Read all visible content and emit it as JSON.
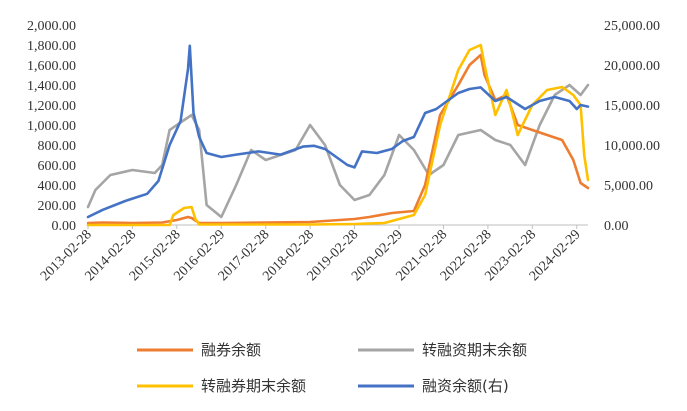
{
  "chart_data": {
    "type": "line",
    "left_axis": {
      "min": 0,
      "max": 2000,
      "step": 200,
      "tick_labels": [
        "0.00",
        "200.00",
        "400.00",
        "600.00",
        "800.00",
        "1,000.00",
        "1,200.00",
        "1,400.00",
        "1,600.00",
        "1,800.00",
        "2,000.00"
      ]
    },
    "right_axis": {
      "min": 0,
      "max": 25000,
      "step": 5000,
      "tick_labels": [
        "0.00",
        "5,000.00",
        "10,000.00",
        "15,000.00",
        "20,000.00",
        "25,000.00"
      ]
    },
    "x_range": [
      "2013-02-28",
      "2024-05-31"
    ],
    "x_tick_labels": [
      "2013-02-28",
      "2014-02-28",
      "2015-02-28",
      "2016-02-29",
      "2017-02-28",
      "2018-02-28",
      "2019-02-28",
      "2020-02-29",
      "2021-02-28",
      "2022-02-28",
      "2023-02-28",
      "2024-02-29"
    ],
    "legend_placement": "bottom",
    "grid": false,
    "series": [
      {
        "name": "融券余额",
        "axis": "left",
        "color": "#ED7D31",
        "points": [
          [
            "2013-02-28",
            20
          ],
          [
            "2013-06-30",
            25
          ],
          [
            "2014-02-28",
            20
          ],
          [
            "2014-10-31",
            25
          ],
          [
            "2015-02-28",
            50
          ],
          [
            "2015-05-31",
            80
          ],
          [
            "2015-06-30",
            70
          ],
          [
            "2015-08-31",
            20
          ],
          [
            "2016-02-29",
            20
          ],
          [
            "2017-02-28",
            25
          ],
          [
            "2018-02-28",
            30
          ],
          [
            "2019-02-28",
            60
          ],
          [
            "2019-06-30",
            80
          ],
          [
            "2019-12-31",
            120
          ],
          [
            "2020-06-30",
            140
          ],
          [
            "2020-09-30",
            400
          ],
          [
            "2021-01-31",
            1100
          ],
          [
            "2021-06-30",
            1400
          ],
          [
            "2021-09-30",
            1600
          ],
          [
            "2021-12-31",
            1700
          ],
          [
            "2022-01-31",
            1500
          ],
          [
            "2022-04-30",
            1250
          ],
          [
            "2022-07-31",
            1300
          ],
          [
            "2022-10-31",
            1000
          ],
          [
            "2023-02-28",
            950
          ],
          [
            "2023-06-30",
            900
          ],
          [
            "2023-10-31",
            850
          ],
          [
            "2024-01-31",
            650
          ],
          [
            "2024-03-31",
            420
          ],
          [
            "2024-05-31",
            370
          ]
        ]
      },
      {
        "name": "转融资期末余额",
        "axis": "left",
        "color": "#A5A5A5",
        "points": [
          [
            "2013-02-28",
            180
          ],
          [
            "2013-04-30",
            350
          ],
          [
            "2013-08-31",
            500
          ],
          [
            "2014-02-28",
            550
          ],
          [
            "2014-08-31",
            520
          ],
          [
            "2014-10-31",
            600
          ],
          [
            "2014-12-31",
            950
          ],
          [
            "2015-04-30",
            1050
          ],
          [
            "2015-06-30",
            1100
          ],
          [
            "2015-08-31",
            950
          ],
          [
            "2015-10-31",
            200
          ],
          [
            "2016-02-29",
            80
          ],
          [
            "2016-06-30",
            400
          ],
          [
            "2016-10-31",
            750
          ],
          [
            "2017-02-28",
            650
          ],
          [
            "2017-06-30",
            700
          ],
          [
            "2017-10-31",
            750
          ],
          [
            "2018-02-28",
            1000
          ],
          [
            "2018-06-30",
            800
          ],
          [
            "2018-10-31",
            400
          ],
          [
            "2019-02-28",
            250
          ],
          [
            "2019-06-30",
            300
          ],
          [
            "2019-10-31",
            500
          ],
          [
            "2020-02-29",
            900
          ],
          [
            "2020-06-30",
            750
          ],
          [
            "2020-10-31",
            500
          ],
          [
            "2021-02-28",
            600
          ],
          [
            "2021-06-30",
            900
          ],
          [
            "2021-12-31",
            950
          ],
          [
            "2022-04-30",
            850
          ],
          [
            "2022-08-31",
            800
          ],
          [
            "2022-12-31",
            600
          ],
          [
            "2023-04-30",
            1000
          ],
          [
            "2023-08-31",
            1300
          ],
          [
            "2023-12-31",
            1400
          ],
          [
            "2024-03-31",
            1300
          ],
          [
            "2024-05-31",
            1400
          ]
        ]
      },
      {
        "name": "转融券期末余额",
        "axis": "left",
        "color": "#FFC000",
        "points": [
          [
            "2013-02-28",
            0
          ],
          [
            "2014-12-31",
            0
          ],
          [
            "2015-01-31",
            100
          ],
          [
            "2015-04-30",
            170
          ],
          [
            "2015-06-30",
            180
          ],
          [
            "2015-07-31",
            60
          ],
          [
            "2015-08-31",
            5
          ],
          [
            "2016-02-29",
            5
          ],
          [
            "2018-02-28",
            5
          ],
          [
            "2019-02-28",
            10
          ],
          [
            "2019-10-31",
            20
          ],
          [
            "2020-02-29",
            60
          ],
          [
            "2020-06-30",
            100
          ],
          [
            "2020-09-30",
            300
          ],
          [
            "2021-01-31",
            1000
          ],
          [
            "2021-06-30",
            1550
          ],
          [
            "2021-09-30",
            1750
          ],
          [
            "2021-12-31",
            1800
          ],
          [
            "2022-01-31",
            1600
          ],
          [
            "2022-04-30",
            1100
          ],
          [
            "2022-07-31",
            1350
          ],
          [
            "2022-10-31",
            900
          ],
          [
            "2023-02-28",
            1200
          ],
          [
            "2023-06-30",
            1350
          ],
          [
            "2023-10-31",
            1380
          ],
          [
            "2024-01-31",
            1300
          ],
          [
            "2024-03-31",
            1200
          ],
          [
            "2024-04-30",
            700
          ],
          [
            "2024-05-31",
            450
          ]
        ]
      },
      {
        "name": "融资余额(右)",
        "axis": "right",
        "color": "#4472C4",
        "points": [
          [
            "2013-02-28",
            1000
          ],
          [
            "2013-06-30",
            1900
          ],
          [
            "2013-12-31",
            3000
          ],
          [
            "2014-02-28",
            3300
          ],
          [
            "2014-06-30",
            3900
          ],
          [
            "2014-09-30",
            5500
          ],
          [
            "2014-12-31",
            10000
          ],
          [
            "2015-03-31",
            13000
          ],
          [
            "2015-05-31",
            19500
          ],
          [
            "2015-06-15",
            22400
          ],
          [
            "2015-07-15",
            14000
          ],
          [
            "2015-08-31",
            11000
          ],
          [
            "2015-10-31",
            9000
          ],
          [
            "2016-02-29",
            8500
          ],
          [
            "2016-06-30",
            8800
          ],
          [
            "2016-12-31",
            9200
          ],
          [
            "2017-06-30",
            8800
          ],
          [
            "2017-12-31",
            9800
          ],
          [
            "2018-03-31",
            9900
          ],
          [
            "2018-06-30",
            9500
          ],
          [
            "2018-12-31",
            7500
          ],
          [
            "2019-02-28",
            7200
          ],
          [
            "2019-04-30",
            9200
          ],
          [
            "2019-08-31",
            9000
          ],
          [
            "2019-12-31",
            9500
          ],
          [
            "2020-03-31",
            10500
          ],
          [
            "2020-06-30",
            11000
          ],
          [
            "2020-09-30",
            14000
          ],
          [
            "2020-12-31",
            14500
          ],
          [
            "2021-03-31",
            15500
          ],
          [
            "2021-06-30",
            16500
          ],
          [
            "2021-09-30",
            17000
          ],
          [
            "2021-12-31",
            17200
          ],
          [
            "2022-04-30",
            15500
          ],
          [
            "2022-07-31",
            16000
          ],
          [
            "2022-12-31",
            14500
          ],
          [
            "2023-04-30",
            15500
          ],
          [
            "2023-08-31",
            16000
          ],
          [
            "2023-12-31",
            15500
          ],
          [
            "2024-02-29",
            14500
          ],
          [
            "2024-03-31",
            15000
          ],
          [
            "2024-05-31",
            14800
          ]
        ]
      }
    ]
  }
}
